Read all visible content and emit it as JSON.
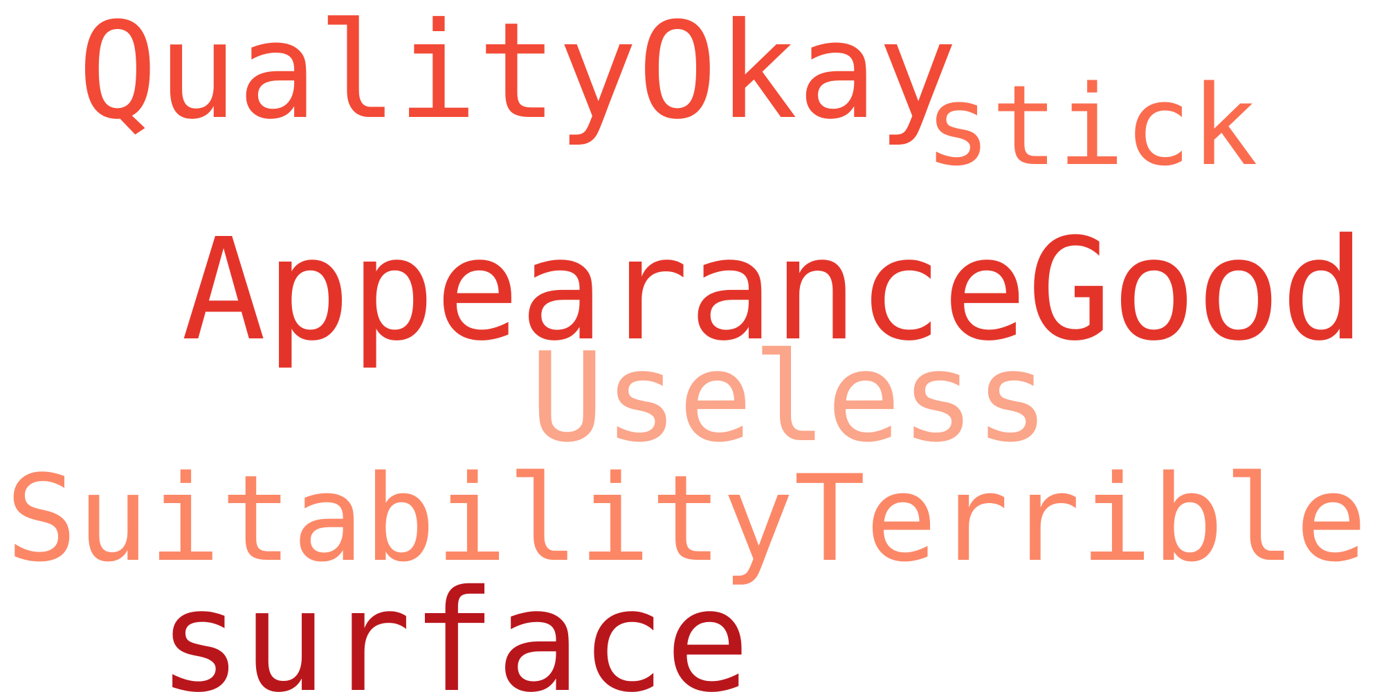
{
  "colors": {
    "background": "#ffffff",
    "word_medium": "#f24a36",
    "word_light": "#fb6c4f",
    "word_strong": "#e4342a",
    "word_pale": "#fba58a",
    "word_soft": "#fc8767",
    "word_dark": "#b9161c"
  },
  "words": [
    {
      "text": "QualityOkay",
      "color": "#f24a36"
    },
    {
      "text": "stick",
      "color": "#fb6c4f"
    },
    {
      "text": "AppearanceGood",
      "color": "#e4342a"
    },
    {
      "text": "Useless",
      "color": "#fba58a"
    },
    {
      "text": "SuitabilityTerrible",
      "color": "#fc8767"
    },
    {
      "text": "surface",
      "color": "#b9161c"
    }
  ]
}
